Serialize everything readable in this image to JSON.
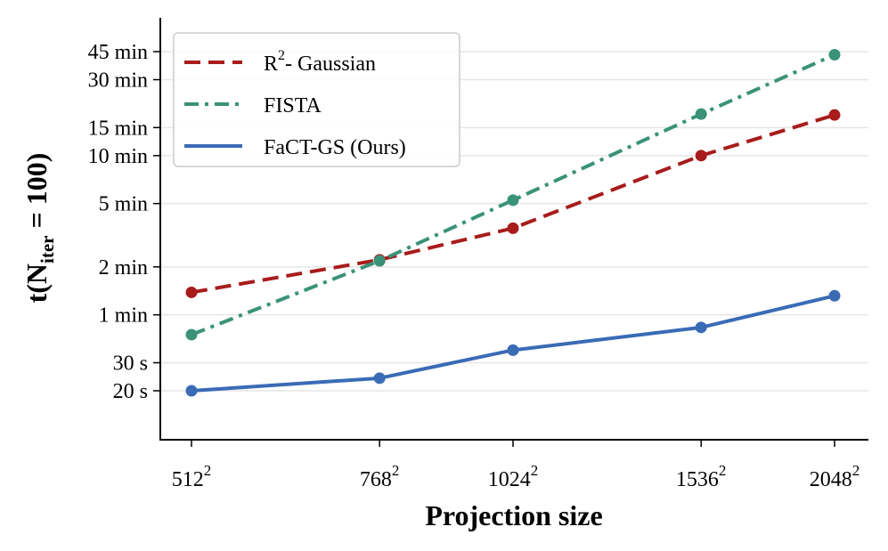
{
  "chart_data": {
    "type": "line",
    "xlabel": "Projection size",
    "ylabel": {
      "prefix": "t(N",
      "subscript": "iter",
      "suffix": " = 100)"
    },
    "y_scale": "log",
    "y_unit": "seconds",
    "ylim": [
      8,
      3600
    ],
    "categories": [
      {
        "base": "512",
        "exp": "2"
      },
      {
        "base": "768",
        "exp": "2"
      },
      {
        "base": "1024",
        "exp": "2"
      },
      {
        "base": "1536",
        "exp": "2"
      },
      {
        "base": "2048",
        "exp": "2"
      }
    ],
    "x_values": [
      512,
      768,
      1024,
      1536,
      2048
    ],
    "yticks": [
      {
        "value": 20,
        "label": "20 s"
      },
      {
        "value": 30,
        "label": "30 s"
      },
      {
        "value": 60,
        "label": "1 min"
      },
      {
        "value": 120,
        "label": "2 min"
      },
      {
        "value": 300,
        "label": "5 min"
      },
      {
        "value": 600,
        "label": "10 min"
      },
      {
        "value": 900,
        "label": "15 min"
      },
      {
        "value": 1800,
        "label": "30 min"
      },
      {
        "value": 2700,
        "label": "45 min"
      }
    ],
    "grid": "horizontal",
    "legend_position": "top-left",
    "series": [
      {
        "name": "R2-Gaussian",
        "legend_label": {
          "pre": "R",
          "sup": "2",
          "post": "- Gaussian"
        },
        "color": "#a81c1c",
        "style": "dashed",
        "values": [
          83,
          133,
          210,
          600,
          1080
        ]
      },
      {
        "name": "FISTA",
        "legend_label": {
          "pre": "FISTA",
          "sup": "",
          "post": ""
        },
        "color": "#3a9278",
        "style": "dashdot",
        "values": [
          45,
          131,
          315,
          1095,
          2580
        ]
      },
      {
        "name": "FaCT-GS (Ours)",
        "legend_label": {
          "pre": "FaCT-GS (Ours)",
          "sup": "",
          "post": ""
        },
        "color": "#3a6bb5",
        "style": "solid",
        "values": [
          20,
          24,
          36,
          50,
          79
        ]
      }
    ]
  }
}
